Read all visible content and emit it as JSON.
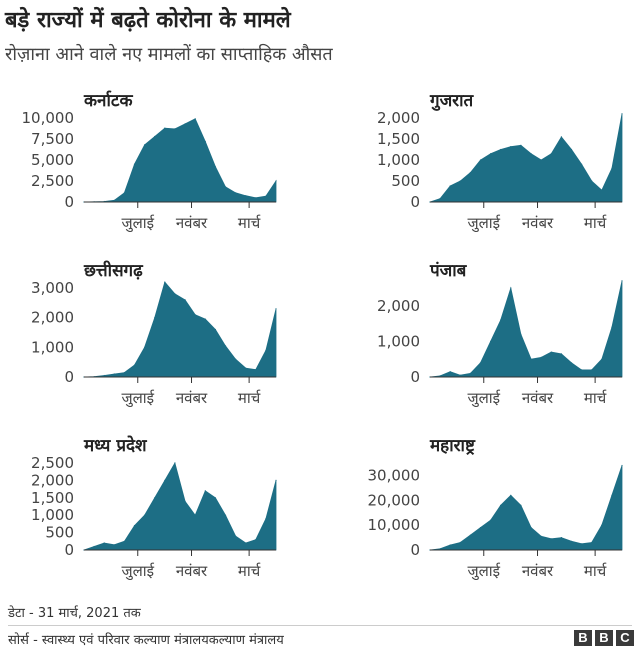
{
  "header": {
    "title": "बड़े राज्यों में बढ़ते कोरोना के मामले",
    "subtitle": "रोज़ाना आने वाले नए मामलों का साप्ताहिक औसत"
  },
  "footer": {
    "note": "डेटा - 31 मार्च, 2021 तक",
    "source": "सोर्स - स्वास्थ्य एवं परिवार कल्याण मंत्रालयकल्याण मंत्रालय",
    "logo_letters": [
      "B",
      "B",
      "C"
    ]
  },
  "colors": {
    "area": "#1d6e85",
    "axis": "#999999",
    "text": "#222222"
  },
  "chart_data": [
    {
      "type": "area",
      "title": "कर्नाटक",
      "xticks": [
        "जुलाई",
        "नवंबर",
        "मार्च"
      ],
      "yticks": [
        0,
        2500,
        5000,
        7500,
        10000
      ],
      "ytick_labels": [
        "0",
        "2,500",
        "5,000",
        "7,500",
        "10,000"
      ],
      "ylim": [
        0,
        10000
      ],
      "x": [
        "Mar",
        "Apr",
        "May",
        "Jun",
        "Jul",
        "early Aug",
        "mid Aug",
        "late Aug",
        "early Sep",
        "mid Sep",
        "late Sep",
        "early Oct",
        "mid Oct",
        "late Oct",
        "Nov",
        "Dec",
        "Jan",
        "Feb",
        "early Mar",
        "late Mar"
      ],
      "values": [
        0,
        20,
        60,
        200,
        1100,
        4500,
        6800,
        7800,
        8800,
        8700,
        9300,
        9900,
        7200,
        4200,
        1800,
        1100,
        750,
        500,
        700,
        2500
      ]
    },
    {
      "type": "area",
      "title": "गुजरात",
      "xticks": [
        "जुलाई",
        "नवंबर",
        "मार्च"
      ],
      "yticks": [
        0,
        500,
        1000,
        1500,
        2000
      ],
      "ytick_labels": [
        "0",
        "500",
        "1,000",
        "1,500",
        "2,000"
      ],
      "ylim": [
        0,
        2000
      ],
      "x": [
        "Mar",
        "Apr",
        "May",
        "Jun",
        "Jul",
        "early Aug",
        "late Aug",
        "early Sep",
        "mid Sep",
        "late Sep",
        "Oct",
        "early Nov",
        "mid Nov",
        "late Nov",
        "early Dec",
        "late Dec",
        "Jan",
        "Feb",
        "early Mar",
        "late Mar"
      ],
      "values": [
        0,
        80,
        380,
        500,
        700,
        1000,
        1150,
        1250,
        1320,
        1350,
        1150,
        1000,
        1150,
        1550,
        1250,
        900,
        500,
        280,
        800,
        2100
      ]
    },
    {
      "type": "area",
      "title": "छत्तीसगढ़",
      "xticks": [
        "जुलाई",
        "नवंबर",
        "मार्च"
      ],
      "yticks": [
        0,
        1000,
        2000,
        3000
      ],
      "ytick_labels": [
        "0",
        "1,000",
        "2,000",
        "3,000"
      ],
      "ylim": [
        0,
        3000
      ],
      "x": [
        "Mar",
        "Apr",
        "May",
        "Jun",
        "Jul",
        "early Aug",
        "late Aug",
        "early Sep",
        "mid Sep",
        "late Sep",
        "early Oct",
        "mid Oct",
        "late Oct",
        "Nov",
        "Dec",
        "Jan",
        "Feb",
        "early Mar",
        "mid Mar",
        "late Mar"
      ],
      "values": [
        0,
        10,
        50,
        100,
        150,
        400,
        1000,
        2000,
        3200,
        2800,
        2600,
        2100,
        1950,
        1600,
        1050,
        600,
        300,
        250,
        900,
        2300
      ]
    },
    {
      "type": "area",
      "title": "पंजाब",
      "xticks": [
        "जुलाई",
        "नवंबर",
        "मार्च"
      ],
      "yticks": [
        0,
        1000,
        2000
      ],
      "ytick_labels": [
        "0",
        "1,000",
        "2,000"
      ],
      "ylim": [
        0,
        2500
      ],
      "x": [
        "Mar",
        "Apr",
        "May",
        "Jun",
        "Jul",
        "early Aug",
        "late Aug",
        "early Sep",
        "mid Sep",
        "late Sep",
        "Oct",
        "early Nov",
        "mid Nov",
        "late Nov",
        "Dec",
        "Jan",
        "Feb",
        "early Mar",
        "mid Mar",
        "late Mar"
      ],
      "values": [
        0,
        30,
        150,
        50,
        100,
        400,
        1000,
        1600,
        2500,
        1200,
        500,
        550,
        700,
        650,
        400,
        200,
        200,
        500,
        1400,
        2700
      ]
    },
    {
      "type": "area",
      "title": "मध्य प्रदेश",
      "xticks": [
        "जुलाई",
        "नवंबर",
        "मार्च"
      ],
      "yticks": [
        0,
        500,
        1000,
        1500,
        2000,
        2500
      ],
      "ytick_labels": [
        "0",
        "500",
        "1,000",
        "1,500",
        "2,000",
        "2,500"
      ],
      "ylim": [
        0,
        2500
      ],
      "x": [
        "Mar",
        "Apr",
        "May",
        "Jun",
        "Jul",
        "early Aug",
        "late Aug",
        "early Sep",
        "mid Sep",
        "late Sep",
        "Oct",
        "early Nov",
        "mid Nov",
        "late Nov",
        "Dec",
        "Jan",
        "Feb",
        "early Mar",
        "mid Mar",
        "late Mar"
      ],
      "values": [
        0,
        100,
        200,
        150,
        250,
        700,
        1000,
        1500,
        2000,
        2500,
        1400,
        1000,
        1700,
        1500,
        1000,
        400,
        200,
        300,
        900,
        2000
      ]
    },
    {
      "type": "area",
      "title": "महाराष्ट्र",
      "xticks": [
        "जुलाई",
        "नवंबर",
        "मार्च"
      ],
      "yticks": [
        0,
        10000,
        20000,
        30000
      ],
      "ytick_labels": [
        "0",
        "10,000",
        "20,000",
        "30,000"
      ],
      "ylim": [
        0,
        35000
      ],
      "x": [
        "Mar",
        "Apr",
        "May",
        "Jun",
        "Jul",
        "early Aug",
        "late Aug",
        "early Sep",
        "mid Sep",
        "late Sep",
        "Oct",
        "early Nov",
        "mid Nov",
        "late Nov",
        "Dec",
        "Jan",
        "Feb",
        "early Mar",
        "mid Mar",
        "late Mar"
      ],
      "values": [
        0,
        500,
        2000,
        3000,
        6000,
        9000,
        12000,
        18000,
        22000,
        18000,
        9000,
        5500,
        4500,
        5000,
        3500,
        2500,
        3000,
        10000,
        22000,
        34000
      ]
    }
  ]
}
